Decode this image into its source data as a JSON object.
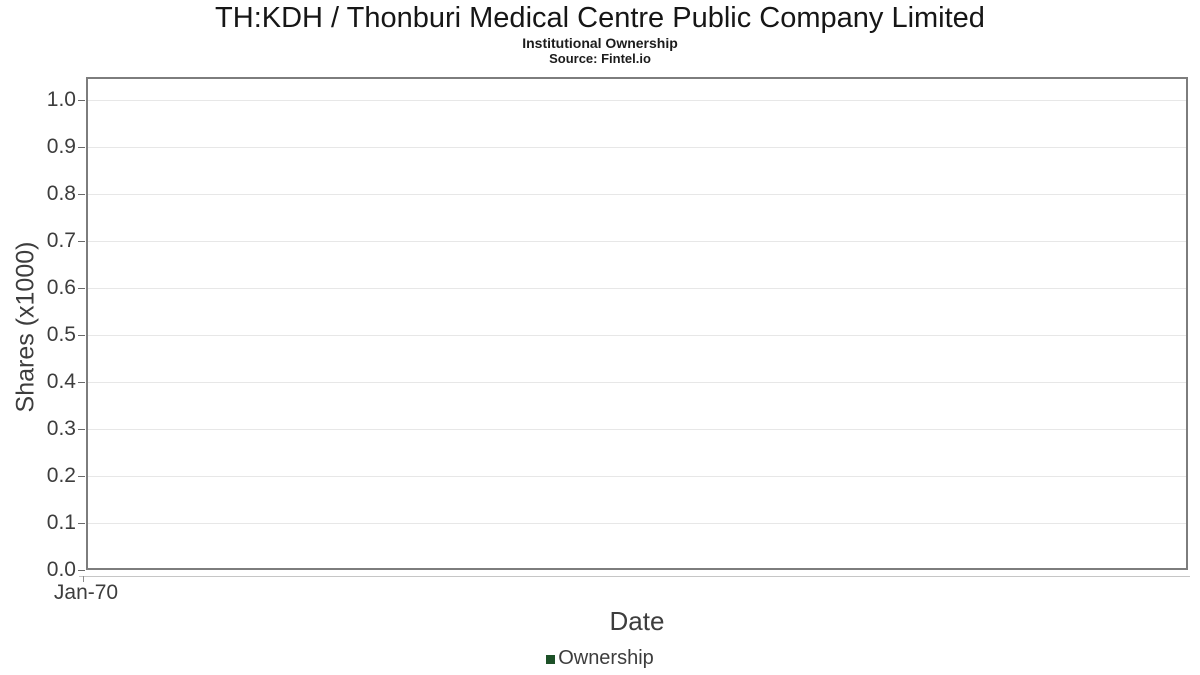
{
  "header": {
    "title": "TH:KDH / Thonburi Medical Centre Public Company Limited",
    "subtitle": "Institutional Ownership",
    "source": "Source: Fintel.io"
  },
  "axes": {
    "y_label": "Shares (x1000)",
    "x_label": "Date",
    "y_ticks": [
      "1.0",
      "0.9",
      "0.8",
      "0.7",
      "0.6",
      "0.5",
      "0.4",
      "0.3",
      "0.2",
      "0.1",
      "0.0"
    ],
    "x_ticks": [
      "Jan-70"
    ]
  },
  "legend": {
    "items": [
      {
        "label": "Ownership",
        "color": "#1d5128"
      }
    ]
  },
  "colors": {
    "plot_border": "#7d7d7d",
    "gridline": "#e7e7e7",
    "x_axis_line": "#c6c6c6",
    "tick_mark": "#6a6a6a",
    "text": "#3d3d3d",
    "title_text": "#161616",
    "legend_marker": "#1d5128",
    "background": "#ffffff"
  },
  "chart_data": {
    "type": "line",
    "title": "TH:KDH / Thonburi Medical Centre Public Company Limited",
    "subtitle": "Institutional Ownership",
    "source": "Source: Fintel.io",
    "xlabel": "Date",
    "ylabel": "Shares (x1000)",
    "ylim": [
      0.0,
      1.05
    ],
    "yticks": [
      0.0,
      0.1,
      0.2,
      0.3,
      0.4,
      0.5,
      0.6,
      0.7,
      0.8,
      0.9,
      1.0
    ],
    "xticks": [
      "Jan-70"
    ],
    "grid": true,
    "legend_position": "bottom",
    "series": [
      {
        "name": "Ownership",
        "color": "#1d5128",
        "x": [],
        "values": []
      }
    ]
  }
}
